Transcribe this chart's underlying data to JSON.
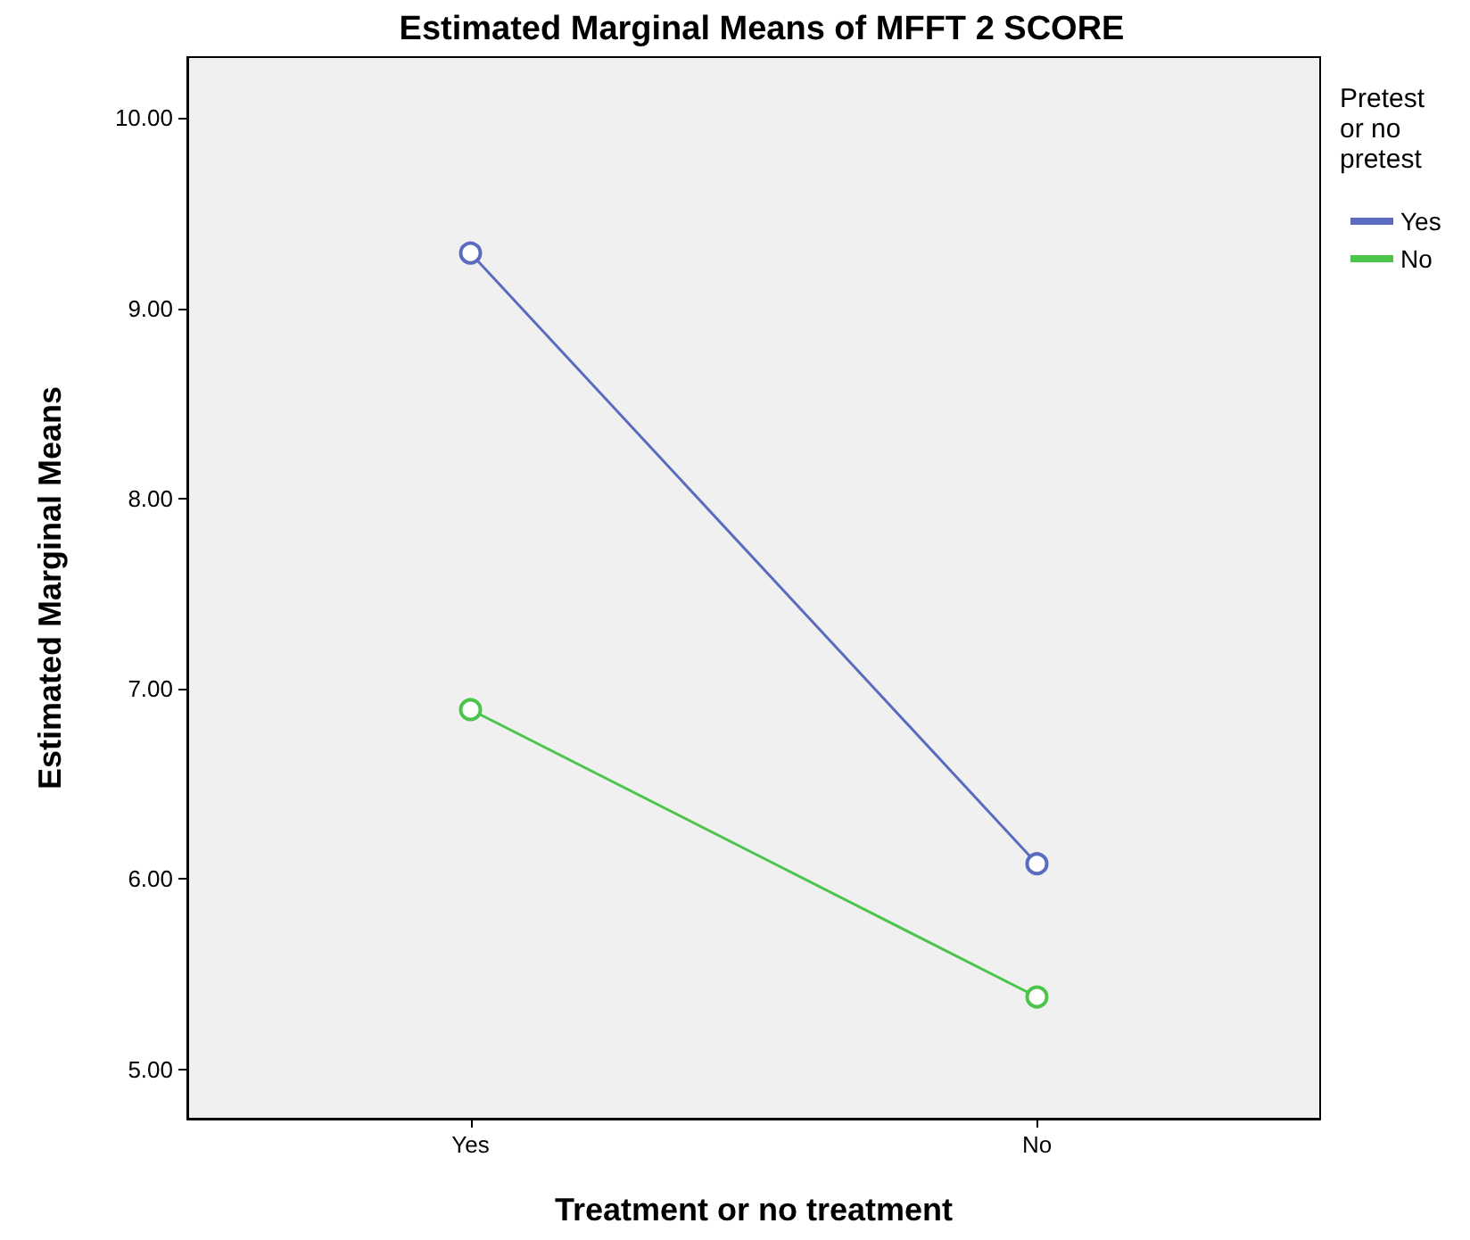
{
  "chart_data": {
    "type": "line",
    "title": "Estimated Marginal Means of MFFT 2 SCORE",
    "xlabel": "Treatment or no treatment",
    "ylabel": "Estimated Marginal Means",
    "legend_title": "Pretest or no pretest",
    "categories": [
      "Yes",
      "No"
    ],
    "series": [
      {
        "name": "Yes",
        "color": "#5b6bbf",
        "values": [
          9.29,
          6.08
        ]
      },
      {
        "name": "No",
        "color": "#4cc44c",
        "values": [
          6.89,
          5.38
        ]
      }
    ],
    "ylim": [
      4.74,
      10.32
    ],
    "yticks": [
      {
        "value": 5,
        "label": "5.00"
      },
      {
        "value": 6,
        "label": "6.00"
      },
      {
        "value": 7,
        "label": "7.00"
      },
      {
        "value": 8,
        "label": "8.00"
      },
      {
        "value": 9,
        "label": "9.00"
      },
      {
        "value": 10,
        "label": "10.00"
      }
    ],
    "grid": false,
    "legend": "right",
    "marker": "circle",
    "line_style": "solid"
  }
}
